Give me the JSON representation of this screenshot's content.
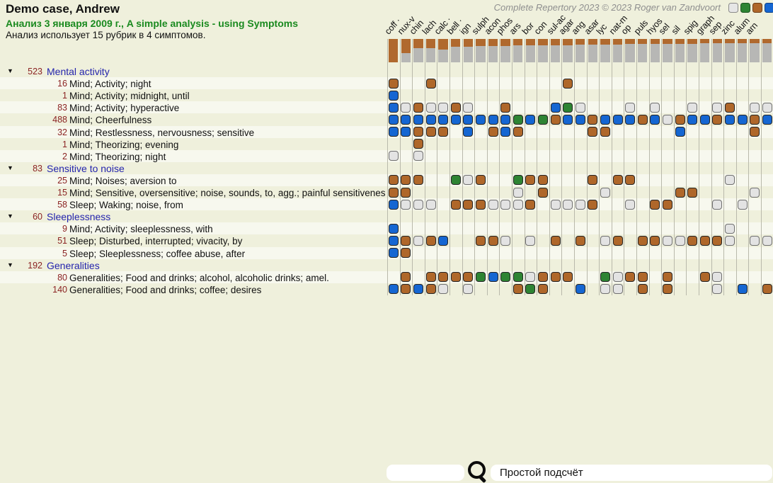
{
  "header": {
    "title": "Demo case, Andrew",
    "analysis_line": "Анализ 3 января 2009 г., A simple analysis - using Symptoms",
    "usage_line": "Анализ использует 15 рубрик в 4 симптомов.",
    "copyright": "Complete Repertory 2023 © 2023 Roger van Zandvoort"
  },
  "grade_buttons": [
    {
      "name": "grade-filter-1",
      "color": "#e6e6e6",
      "border": "#8a8a8a"
    },
    {
      "name": "grade-filter-2",
      "color": "#2e8433",
      "border": "#1d5521"
    },
    {
      "name": "grade-filter-3",
      "color": "#af672a",
      "border": "#6f3f18"
    },
    {
      "name": "grade-filter-4",
      "color": "#1566d2",
      "border": "#0d3f85"
    }
  ],
  "grid": {
    "remedies": [
      {
        "label": "coff",
        "dot": true
      },
      {
        "label": "nux-v",
        "dot": false
      },
      {
        "label": "chin",
        "dot": false
      },
      {
        "label": "lach",
        "dot": false
      },
      {
        "label": "calc",
        "dot": true
      },
      {
        "label": "bell",
        "dot": true
      },
      {
        "label": "ign",
        "dot": false
      },
      {
        "label": "sulph",
        "dot": false
      },
      {
        "label": "acon",
        "dot": false
      },
      {
        "label": "phos",
        "dot": false
      },
      {
        "label": "ars",
        "dot": false
      },
      {
        "label": "bor",
        "dot": false
      },
      {
        "label": "con",
        "dot": false
      },
      {
        "label": "sul-ac",
        "dot": false
      },
      {
        "label": "agar",
        "dot": false
      },
      {
        "label": "ang",
        "dot": false
      },
      {
        "label": "asar",
        "dot": false
      },
      {
        "label": "lyc",
        "dot": false
      },
      {
        "label": "nat-m",
        "dot": false
      },
      {
        "label": "op",
        "dot": false
      },
      {
        "label": "puls",
        "dot": false
      },
      {
        "label": "hyos",
        "dot": false
      },
      {
        "label": "sel",
        "dot": false
      },
      {
        "label": "sil",
        "dot": false
      },
      {
        "label": "spig",
        "dot": false
      },
      {
        "label": "graph",
        "dot": false
      },
      {
        "label": "sep",
        "dot": false
      },
      {
        "label": "zinc",
        "dot": false
      },
      {
        "label": "alum",
        "dot": false
      },
      {
        "label": "arn",
        "dot": false
      },
      {
        "label": "",
        "dot": false
      }
    ],
    "bar_fractions": [
      1.0,
      0.62,
      0.4,
      0.4,
      0.46,
      0.32,
      0.32,
      0.3,
      0.3,
      0.3,
      0.28,
      0.28,
      0.28,
      0.26,
      0.26,
      0.24,
      0.24,
      0.23,
      0.23,
      0.22,
      0.22,
      0.21,
      0.21,
      0.2,
      0.2,
      0.19,
      0.19,
      0.18,
      0.18,
      0.17,
      0.17
    ],
    "rows": [
      {
        "type": "group",
        "count": "523",
        "label": "Mental activity"
      },
      {
        "type": "rubric",
        "count": "16",
        "label": "Mind; Activity; night",
        "cells": [
          [
            1,
            3
          ],
          [
            4,
            3
          ],
          [
            15,
            3
          ]
        ]
      },
      {
        "type": "rubric",
        "count": "1",
        "label": "Mind; Activity; midnight, until",
        "cells": [
          [
            1,
            4
          ]
        ]
      },
      {
        "type": "rubric",
        "count": "83",
        "label": "Mind; Activity; hyperactive",
        "cells": [
          [
            1,
            4
          ],
          [
            2,
            1
          ],
          [
            3,
            3
          ],
          [
            4,
            1
          ],
          [
            5,
            1
          ],
          [
            6,
            3
          ],
          [
            7,
            1
          ],
          [
            10,
            3
          ],
          [
            14,
            4
          ],
          [
            15,
            2
          ],
          [
            16,
            1
          ],
          [
            20,
            1
          ],
          [
            22,
            1
          ],
          [
            25,
            1
          ],
          [
            27,
            1
          ],
          [
            28,
            3
          ],
          [
            30,
            1
          ],
          [
            31,
            1
          ]
        ]
      },
      {
        "type": "rubric",
        "count": "488",
        "label": "Mind; Cheerfulness",
        "cells": [
          [
            1,
            4
          ],
          [
            2,
            4
          ],
          [
            3,
            4
          ],
          [
            4,
            4
          ],
          [
            5,
            4
          ],
          [
            6,
            4
          ],
          [
            7,
            4
          ],
          [
            8,
            4
          ],
          [
            9,
            4
          ],
          [
            10,
            4
          ],
          [
            11,
            2
          ],
          [
            12,
            4
          ],
          [
            13,
            2
          ],
          [
            14,
            3
          ],
          [
            15,
            4
          ],
          [
            16,
            4
          ],
          [
            17,
            3
          ],
          [
            18,
            4
          ],
          [
            19,
            4
          ],
          [
            20,
            4
          ],
          [
            21,
            3
          ],
          [
            22,
            4
          ],
          [
            23,
            1
          ],
          [
            24,
            3
          ],
          [
            25,
            4
          ],
          [
            26,
            4
          ],
          [
            27,
            3
          ],
          [
            28,
            4
          ],
          [
            29,
            4
          ],
          [
            30,
            3
          ],
          [
            31,
            4
          ]
        ]
      },
      {
        "type": "rubric",
        "count": "32",
        "label": "Mind; Restlessness, nervousness; sensitive",
        "cells": [
          [
            1,
            4
          ],
          [
            2,
            4
          ],
          [
            3,
            3
          ],
          [
            4,
            3
          ],
          [
            5,
            3
          ],
          [
            7,
            4
          ],
          [
            9,
            3
          ],
          [
            10,
            4
          ],
          [
            11,
            3
          ],
          [
            17,
            3
          ],
          [
            18,
            3
          ],
          [
            24,
            4
          ],
          [
            30,
            3
          ]
        ]
      },
      {
        "type": "rubric",
        "count": "1",
        "label": "Mind; Theorizing; evening",
        "cells": [
          [
            3,
            3
          ]
        ]
      },
      {
        "type": "rubric",
        "count": "2",
        "label": "Mind; Theorizing; night",
        "cells": [
          [
            1,
            1
          ],
          [
            3,
            1
          ]
        ]
      },
      {
        "type": "group",
        "count": "83",
        "label": "Sensitive to noise"
      },
      {
        "type": "rubric",
        "count": "25",
        "label": "Mind; Noises; aversion to",
        "cells": [
          [
            1,
            3
          ],
          [
            2,
            3
          ],
          [
            3,
            3
          ],
          [
            6,
            2
          ],
          [
            7,
            1
          ],
          [
            8,
            3
          ],
          [
            11,
            2
          ],
          [
            12,
            3
          ],
          [
            13,
            3
          ],
          [
            17,
            3
          ],
          [
            19,
            3
          ],
          [
            20,
            3
          ],
          [
            28,
            1
          ]
        ]
      },
      {
        "type": "rubric",
        "count": "15",
        "label": "Mind; Sensitive, oversensitive; noise, sounds, to, agg.; painful sensitiveness",
        "cells": [
          [
            1,
            3
          ],
          [
            2,
            3
          ],
          [
            11,
            1
          ],
          [
            13,
            3
          ],
          [
            18,
            1
          ],
          [
            24,
            3
          ],
          [
            25,
            3
          ],
          [
            30,
            1
          ]
        ]
      },
      {
        "type": "rubric",
        "count": "58",
        "label": "Sleep; Waking; noise, from",
        "cells": [
          [
            1,
            4
          ],
          [
            2,
            1
          ],
          [
            3,
            1
          ],
          [
            4,
            1
          ],
          [
            6,
            3
          ],
          [
            7,
            3
          ],
          [
            8,
            3
          ],
          [
            9,
            1
          ],
          [
            10,
            1
          ],
          [
            11,
            1
          ],
          [
            12,
            3
          ],
          [
            14,
            1
          ],
          [
            15,
            1
          ],
          [
            16,
            1
          ],
          [
            17,
            3
          ],
          [
            20,
            1
          ],
          [
            22,
            3
          ],
          [
            23,
            3
          ],
          [
            27,
            1
          ],
          [
            29,
            1
          ]
        ]
      },
      {
        "type": "group",
        "count": "60",
        "label": "Sleeplessness"
      },
      {
        "type": "rubric",
        "count": "9",
        "label": "Mind; Activity; sleeplessness, with",
        "cells": [
          [
            1,
            4
          ],
          [
            28,
            1
          ]
        ]
      },
      {
        "type": "rubric",
        "count": "51",
        "label": "Sleep; Disturbed, interrupted; vivacity, by",
        "cells": [
          [
            1,
            4
          ],
          [
            2,
            3
          ],
          [
            3,
            1
          ],
          [
            4,
            3
          ],
          [
            5,
            4
          ],
          [
            8,
            3
          ],
          [
            9,
            3
          ],
          [
            10,
            1
          ],
          [
            12,
            1
          ],
          [
            14,
            3
          ],
          [
            16,
            3
          ],
          [
            18,
            1
          ],
          [
            19,
            3
          ],
          [
            21,
            3
          ],
          [
            22,
            3
          ],
          [
            23,
            1
          ],
          [
            24,
            1
          ],
          [
            25,
            3
          ],
          [
            26,
            3
          ],
          [
            27,
            3
          ],
          [
            28,
            1
          ],
          [
            30,
            1
          ],
          [
            31,
            1
          ]
        ]
      },
      {
        "type": "rubric",
        "count": "5",
        "label": "Sleep; Sleeplessness; coffee abuse, after",
        "cells": [
          [
            1,
            4
          ],
          [
            2,
            3
          ]
        ]
      },
      {
        "type": "group",
        "count": "192",
        "label": "Generalities"
      },
      {
        "type": "rubric",
        "count": "80",
        "label": "Generalities; Food and drinks; alcohol, alcoholic drinks; amel.",
        "cells": [
          [
            2,
            3
          ],
          [
            4,
            3
          ],
          [
            5,
            3
          ],
          [
            6,
            3
          ],
          [
            7,
            3
          ],
          [
            8,
            2
          ],
          [
            9,
            4
          ],
          [
            10,
            2
          ],
          [
            11,
            2
          ],
          [
            12,
            1
          ],
          [
            13,
            3
          ],
          [
            14,
            3
          ],
          [
            15,
            3
          ],
          [
            18,
            2
          ],
          [
            19,
            1
          ],
          [
            20,
            3
          ],
          [
            21,
            3
          ],
          [
            23,
            3
          ],
          [
            26,
            3
          ],
          [
            27,
            1
          ]
        ]
      },
      {
        "type": "rubric",
        "count": "140",
        "label": "Generalities; Food and drinks; coffee; desires",
        "cells": [
          [
            1,
            4
          ],
          [
            2,
            3
          ],
          [
            3,
            4
          ],
          [
            4,
            3
          ],
          [
            5,
            1
          ],
          [
            7,
            1
          ],
          [
            11,
            3
          ],
          [
            12,
            2
          ],
          [
            13,
            3
          ],
          [
            16,
            4
          ],
          [
            18,
            1
          ],
          [
            19,
            1
          ],
          [
            21,
            3
          ],
          [
            23,
            3
          ],
          [
            27,
            1
          ],
          [
            29,
            4
          ],
          [
            31,
            3
          ]
        ]
      }
    ]
  },
  "footer": {
    "search_value": "",
    "method_label": "Простой подсчёт"
  },
  "colors": {
    "background": "#eff0dc",
    "grade1_white": "#e3e3e3",
    "grade2_green": "#2e8433",
    "grade3_brown": "#af672a",
    "grade4_blue": "#1566d2",
    "bar_brown": "#b0692e",
    "bar_gray": "#b7b7b5",
    "group_text": "#2424ad",
    "count_text": "#8b2323",
    "analysis_text": "#1a8a1f"
  }
}
